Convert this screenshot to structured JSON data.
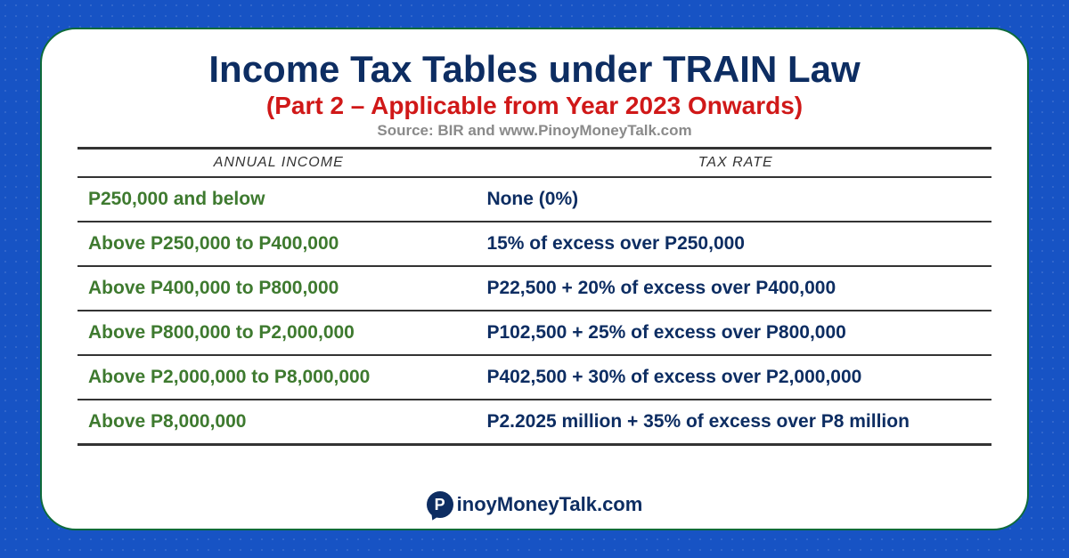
{
  "title": "Income Tax Tables under TRAIN Law",
  "subtitle": "(Part 2 – Applicable from Year 2023 Onwards)",
  "source": "Source: BIR and www.PinoyMoneyTalk.com",
  "columns": {
    "income": "ANNUAL INCOME",
    "rate": "TAX RATE"
  },
  "rows": [
    {
      "income": "P250,000 and below",
      "rate": "None (0%)"
    },
    {
      "income": "Above P250,000 to P400,000",
      "rate": "15% of excess over P250,000"
    },
    {
      "income": "Above P400,000 to P800,000",
      "rate": "P22,500 + 20% of excess over P400,000"
    },
    {
      "income": "Above P800,000 to P2,000,000",
      "rate": "P102,500 + 25% of excess over P800,000"
    },
    {
      "income": "Above P2,000,000 to P8,000,000",
      "rate": "P402,500 + 30% of excess over P2,000,000"
    },
    {
      "income": "Above P8,000,000",
      "rate": "P2.2025 million + 35% of excess over P8 million"
    }
  ],
  "footer": {
    "logo_letter": "P",
    "text": "inoyMoneyTalk.com"
  },
  "colors": {
    "page_bg": "#1753c4",
    "card_bg": "#ffffff",
    "card_border": "#0e6b3a",
    "title": "#0d2d62",
    "subtitle": "#d01818",
    "source": "#8a8a8a",
    "income_text": "#3e7a2f",
    "rate_text": "#0d2d62",
    "rule": "#333333"
  }
}
